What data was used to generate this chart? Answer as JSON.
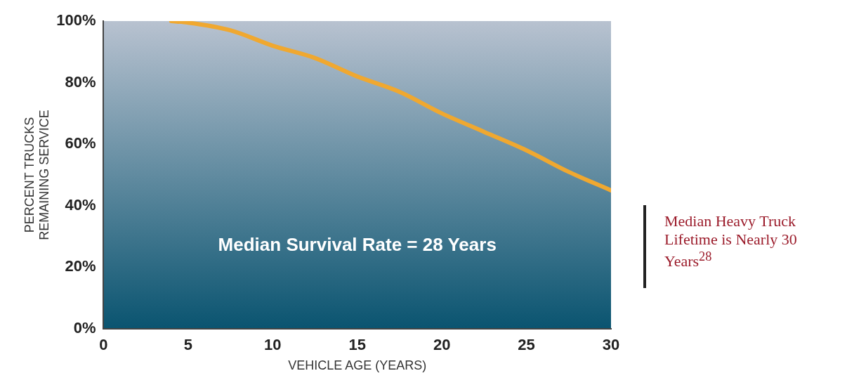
{
  "chart_data": {
    "type": "line",
    "xlabel": "VEHICLE AGE (YEARS)",
    "ylabel": "PERCENT TRUCKS\nREMAINING SERVICE",
    "x": [
      4,
      5,
      7.5,
      10,
      12.5,
      15,
      17.5,
      20,
      22.5,
      25,
      27.5,
      30
    ],
    "series": [
      {
        "color": "#f0a830",
        "values": [
          100,
          99.5,
          97,
          92,
          88,
          82,
          77,
          70,
          64,
          58,
          51,
          45
        ]
      }
    ],
    "xlim": [
      0,
      30
    ],
    "xticks": [
      0,
      5,
      10,
      15,
      20,
      25,
      30
    ],
    "ylim": [
      0,
      100
    ],
    "yticks": [
      {
        "value": 0,
        "label": "0%"
      },
      {
        "value": 20,
        "label": "20%"
      },
      {
        "value": 40,
        "label": "40%"
      },
      {
        "value": 60,
        "label": "60%"
      },
      {
        "value": 80,
        "label": "80%"
      },
      {
        "value": 100,
        "label": "100%"
      }
    ],
    "annotations": [
      "Median Survival Rate = 28 Years",
      "Median Heavy Truck Lifetime is Nearly 30 Years$^{28}$"
    ],
    "marker": "none",
    "line_style": "solid"
  }
}
